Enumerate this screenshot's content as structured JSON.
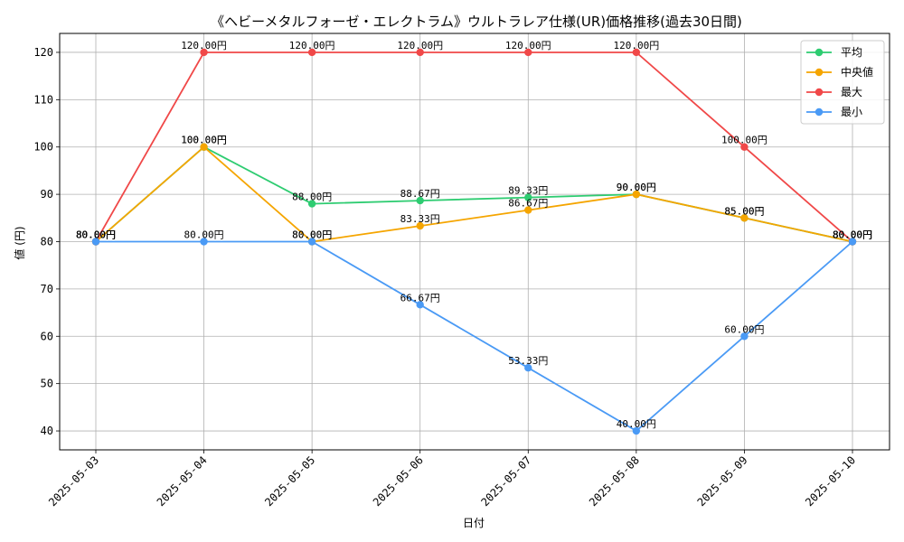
{
  "chart_data": {
    "type": "line",
    "title": "《ヘビーメタルフォーゼ・エレクトラム》ウルトラレア仕様(UR)価格推移(過去30日間)",
    "xlabel": "日付",
    "ylabel": "値 (円)",
    "categories": [
      "2025-05-03",
      "2025-05-04",
      "2025-05-05",
      "2025-05-06",
      "2025-05-07",
      "2025-05-08",
      "2025-05-09",
      "2025-05-10"
    ],
    "ylim": [
      36,
      124
    ],
    "yticks": [
      40,
      50,
      60,
      70,
      80,
      90,
      100,
      110,
      120
    ],
    "grid": true,
    "legend_position": "top-right",
    "data_label_suffix": "円",
    "series": [
      {
        "name": "平均",
        "color": "#2ecc71",
        "values": [
          80.0,
          100.0,
          88.0,
          88.67,
          89.33,
          90.0,
          85.0,
          80.0
        ]
      },
      {
        "name": "中央値",
        "color": "#f5a500",
        "values": [
          80.0,
          100.0,
          80.0,
          83.33,
          86.67,
          90.0,
          85.0,
          80.0
        ]
      },
      {
        "name": "最大",
        "color": "#f04848",
        "values": [
          80.0,
          120.0,
          120.0,
          120.0,
          120.0,
          120.0,
          100.0,
          80.0
        ]
      },
      {
        "name": "最小",
        "color": "#4a9af5",
        "values": [
          80.0,
          80.0,
          80.0,
          66.67,
          53.33,
          40.0,
          60.0,
          80.0
        ]
      }
    ]
  }
}
